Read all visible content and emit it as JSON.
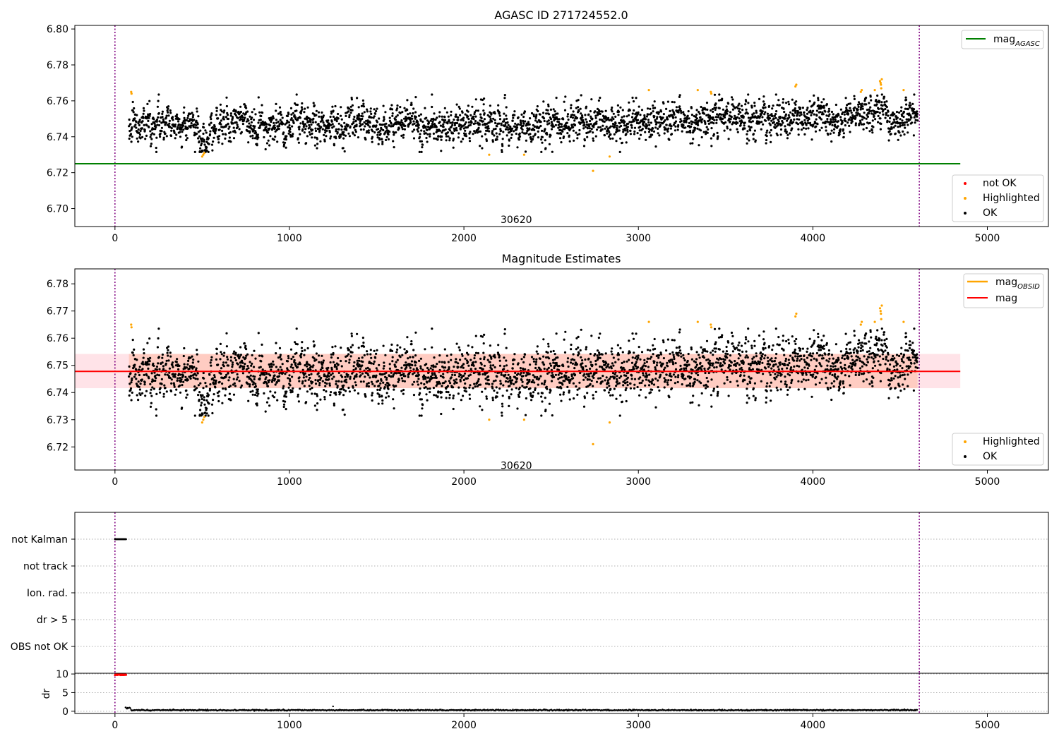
{
  "chart_data": [
    {
      "type": "scatter",
      "title": "AGASC ID 271724552.0",
      "xlim": [
        -230,
        5350
      ],
      "ylim": [
        6.69,
        6.802
      ],
      "x_ticks": [
        0,
        1000,
        2000,
        3000,
        4000,
        5000
      ],
      "y_ticks": [
        6.7,
        6.72,
        6.74,
        6.76,
        6.78,
        6.8
      ],
      "grid": false,
      "legend_upper": {
        "placement": "top-right",
        "entries": [
          {
            "label": "mag",
            "subscript": "AGASC",
            "color": "#008000"
          }
        ]
      },
      "legend_lower": {
        "placement": "bottom-right",
        "entries": [
          {
            "label": "not OK",
            "color": "#ff0000"
          },
          {
            "label": "Highlighted",
            "color": "#ffa500"
          },
          {
            "label": "OK",
            "color": "#000000"
          }
        ]
      },
      "lines": [
        {
          "name": "mag_AGASC",
          "y": 6.725,
          "x": [
            -230,
            4845
          ],
          "color": "#008000"
        }
      ],
      "vlines": [
        0,
        4610
      ],
      "annotation": {
        "text": "30620",
        "x": 2300,
        "y": 6.694
      },
      "series_spec": {
        "x_range": [
          80,
          4600
        ],
        "count": 3100,
        "ok_color": "#000000",
        "highlight_color": "#ffa500"
      },
      "highlighted": [
        [
          93,
          6.765
        ],
        [
          95,
          6.764
        ],
        [
          500,
          6.729
        ],
        [
          506,
          6.73
        ],
        [
          512,
          6.731
        ],
        [
          2145,
          6.73
        ],
        [
          2345,
          6.73
        ],
        [
          2740,
          6.721
        ],
        [
          2835,
          6.729
        ],
        [
          3060,
          6.766
        ],
        [
          3340,
          6.766
        ],
        [
          3415,
          6.765
        ],
        [
          3418,
          6.764
        ],
        [
          3900,
          6.768
        ],
        [
          3905,
          6.769
        ],
        [
          4275,
          6.765
        ],
        [
          4280,
          6.766
        ],
        [
          4355,
          6.766
        ],
        [
          4385,
          6.771
        ],
        [
          4388,
          6.77
        ],
        [
          4390,
          6.769
        ],
        [
          4392,
          6.767
        ],
        [
          4395,
          6.772
        ],
        [
          4520,
          6.766
        ]
      ]
    },
    {
      "type": "scatter",
      "title": "Magnitude Estimates",
      "xlim": [
        -230,
        5350
      ],
      "ylim": [
        6.7115,
        6.7855
      ],
      "x_ticks": [
        0,
        1000,
        2000,
        3000,
        4000,
        5000
      ],
      "y_ticks": [
        6.72,
        6.73,
        6.74,
        6.75,
        6.76,
        6.77,
        6.78
      ],
      "grid": false,
      "legend_upper": {
        "placement": "top-right",
        "entries": [
          {
            "label": "mag",
            "subscript": "OBSID",
            "color": "#ffa500"
          },
          {
            "label": "mag",
            "subscript": "",
            "color": "#ff0000"
          }
        ]
      },
      "legend_lower": {
        "placement": "bottom-right",
        "entries": [
          {
            "label": "Highlighted",
            "color": "#ffa500"
          },
          {
            "label": "OK",
            "color": "#000000"
          }
        ]
      },
      "lines": [
        {
          "name": "mag",
          "y": 6.7478,
          "x": [
            -230,
            4845
          ],
          "color": "#ff0000"
        },
        {
          "name": "mag_OBSID",
          "y": 6.7478,
          "x": [
            80,
            4600
          ],
          "color": "#ffa500"
        }
      ],
      "bands": [
        {
          "y_low": 6.7416,
          "y_high": 6.7542,
          "x": [
            -230,
            4845
          ],
          "color": "#ffc0cb"
        },
        {
          "y_low": 6.7416,
          "y_high": 6.7542,
          "x": [
            80,
            4600
          ],
          "color": "#ffa07a"
        }
      ],
      "vlines": [
        0,
        4610
      ],
      "annotation": {
        "text": "30620",
        "x": 2300,
        "y": 6.7132
      }
    },
    {
      "type": "scatter",
      "title": "",
      "xlim": [
        -230,
        5350
      ],
      "categories": [
        "OBS not OK",
        "dr > 5",
        "Ion. rad.",
        "not track",
        "not Kalman"
      ],
      "flags": [
        {
          "category": "not Kalman",
          "x_range": [
            0,
            65
          ]
        }
      ],
      "vlines": [
        0,
        4610
      ]
    },
    {
      "type": "scatter",
      "title": "",
      "xlim": [
        -230,
        5350
      ],
      "ylim": [
        -0.6,
        10.2
      ],
      "ylabel": "dr",
      "x_ticks": [
        0,
        1000,
        2000,
        3000,
        4000,
        5000
      ],
      "y_ticks": [
        0,
        5,
        10
      ],
      "grid": "y",
      "flagged": {
        "x_range": [
          0,
          65
        ],
        "y": 9.8,
        "color": "#ff0000"
      },
      "baseline": {
        "x_range": [
          60,
          4600
        ],
        "y": 0.3,
        "color": "#000000"
      },
      "outlier": [
        1250,
        1.3
      ],
      "vlines": [
        0,
        4610
      ]
    }
  ]
}
